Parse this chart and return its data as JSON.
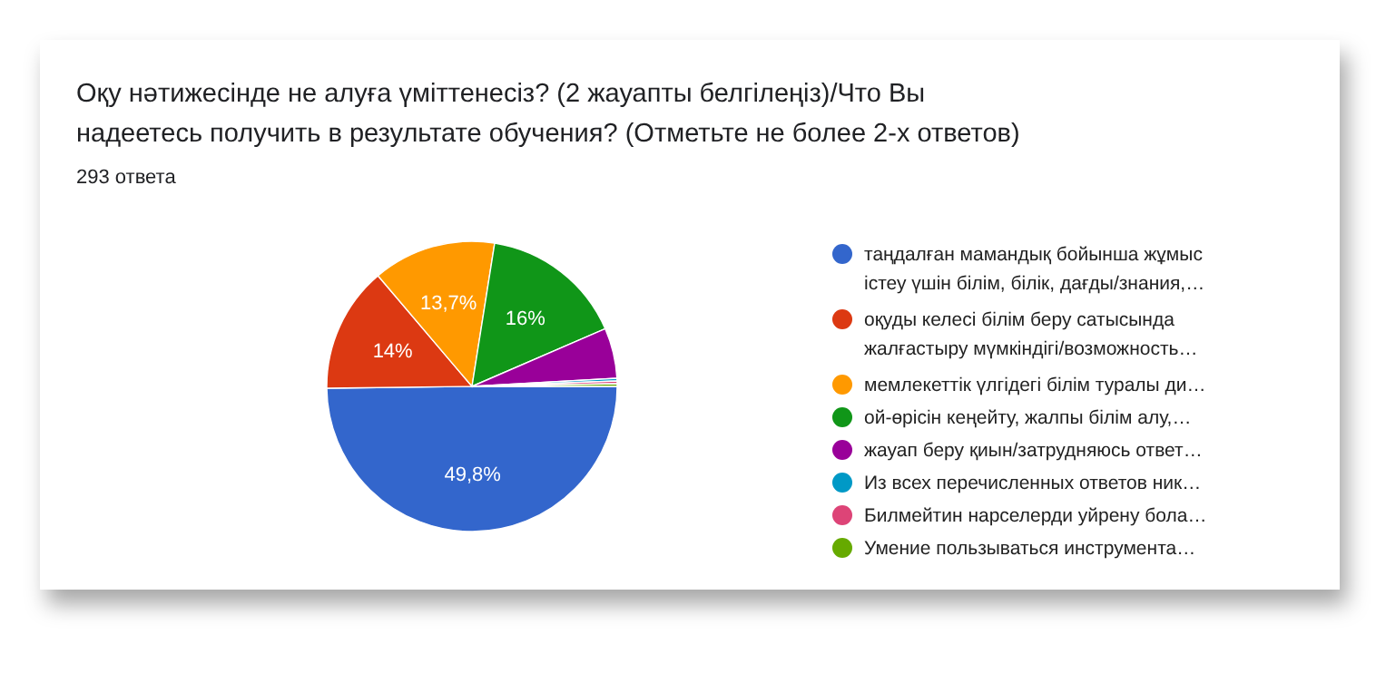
{
  "chart_data": {
    "type": "pie",
    "title": "Оқу нәтижесінде не алуға үміттенесіз? (2 жауапты белгілеңіз)/Что Вы надеетесь получить в результате обучения? (Отметьте не более 2-х ответов)",
    "subtitle": "293 ответа",
    "categories": [
      "таңдалған мамандық бойынша жұмыс істеу үшін білім, білік, дағды/знания,…",
      "оқуды келесі білім беру сатысында жалғастыру мүмкіндігі/возможность…",
      "мемлекеттік үлгідегі білім туралы ди…",
      "ой-өрісін кеңейту, жалпы білім алу,…",
      "жауап беру қиын/затрудняюсь ответ…",
      "Из всех перечисленных ответов ник…",
      "Билмейтин нарселерди уйрену бола…",
      "Умение пользываться инструмента…"
    ],
    "values": [
      49.8,
      14,
      13.7,
      16,
      5.6,
      0.3,
      0.3,
      0.3
    ],
    "colors": [
      "#3366cc",
      "#dc3912",
      "#ff9900",
      "#109618",
      "#990099",
      "#0099c6",
      "#dd4477",
      "#66aa00"
    ],
    "value_labels": [
      "49,8%",
      "14%",
      "13,7%",
      "16%",
      null,
      null,
      null,
      null
    ],
    "legend": "right"
  }
}
